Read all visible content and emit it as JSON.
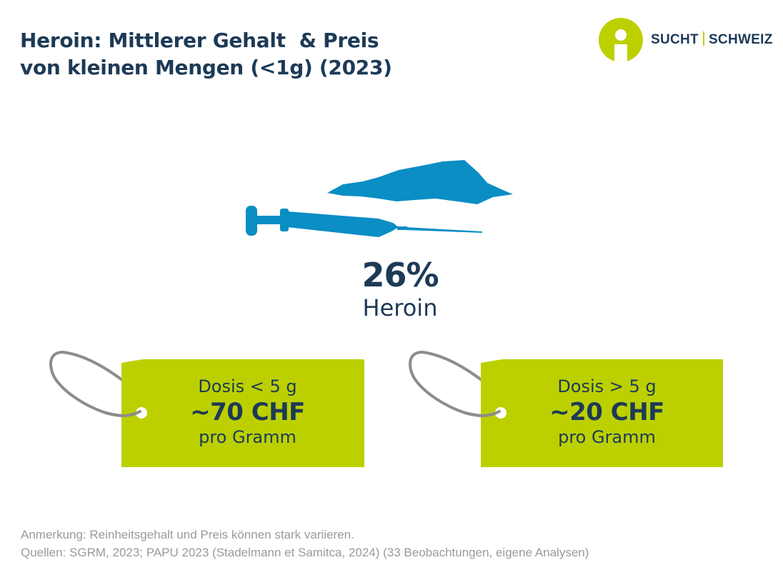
{
  "header": {
    "title_line1": "Heroin: Mittlerer Gehalt  & Preis",
    "title_line2": "von kleinen Mengen (<1g) (2023)"
  },
  "logo": {
    "part1": "SUCHT",
    "part2": "SCHWEIZ",
    "icon": "sucht-schweiz-logo-icon"
  },
  "stat": {
    "value": "26%",
    "label": "Heroin",
    "icons": [
      "heroin-powder-icon",
      "syringe-icon"
    ]
  },
  "tags": [
    {
      "line1": "Dosis < 5 g",
      "price": "~70 CHF",
      "line3": "pro Gramm"
    },
    {
      "line1": "Dosis > 5 g",
      "price": "~20 CHF",
      "line3": "pro Gramm"
    }
  ],
  "footer": {
    "note": "Anmerkung: Reinheitsgehalt und Preis können stark variieren.",
    "sources": "Quellen: SGRM, 2023; PAPU 2023 (Stadelmann et Samitca, 2024) (33 Beobachtungen, eigene Analysen)"
  },
  "colors": {
    "navy": "#1d3a57",
    "lime": "#bcd000",
    "blue": "#0a8ec4",
    "grey": "#9a9a9a"
  }
}
